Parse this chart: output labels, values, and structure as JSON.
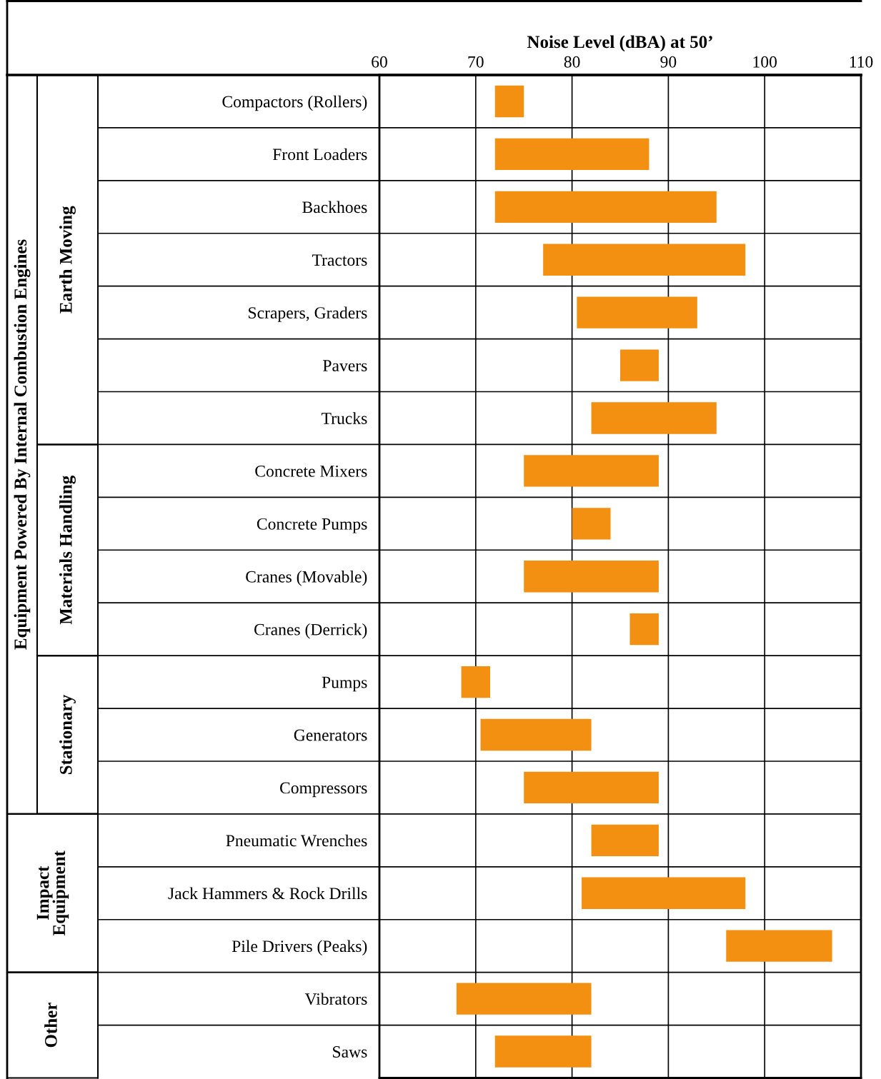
{
  "chart_data": {
    "type": "bar",
    "orientation": "horizontal",
    "xlabel": "Noise Level (dBA) at 50’",
    "categories": [
      "Compactors (Rollers)",
      "Front Loaders",
      "Backhoes",
      "Tractors",
      "Scrapers, Graders",
      "Pavers",
      "Trucks",
      "Concrete Mixers",
      "Concrete Pumps",
      "Cranes (Movable)",
      "Cranes (Derrick)",
      "Pumps",
      "Generators",
      "Compressors",
      "Pneumatic Wrenches",
      "Jack Hammers & Rock Drills",
      "Pile Drivers (Peaks)",
      "Vibrators",
      "Saws"
    ],
    "base": [
      72,
      72,
      72,
      77,
      80.5,
      85,
      82,
      75,
      80,
      75,
      86,
      68.5,
      70.5,
      75,
      82,
      81,
      96,
      68,
      72
    ],
    "values": [
      3,
      16,
      23,
      21,
      12.5,
      4,
      13,
      14,
      4,
      14,
      3,
      3,
      11.5,
      14,
      7,
      17,
      11,
      14,
      10
    ],
    "color": "#f39012",
    "xlim": [
      60,
      110
    ],
    "xticks": [
      60,
      70,
      80,
      90,
      100,
      110
    ],
    "grid": "x",
    "annotations": [
      "Equipment Powered By Internal Combustion Engines",
      "Earth Moving",
      "Materials Handling",
      "Stationary",
      "Impact Equipment",
      "Other"
    ]
  }
}
